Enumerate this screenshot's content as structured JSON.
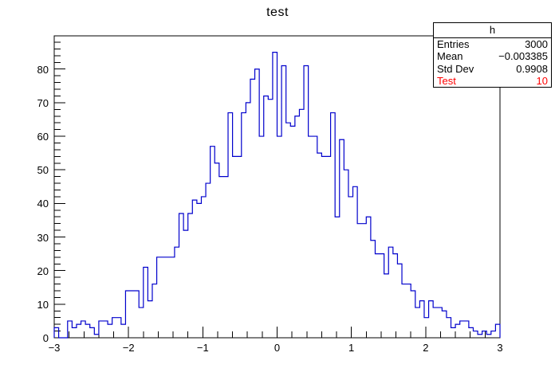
{
  "title": "test",
  "stats_box": {
    "header": "h",
    "rows": [
      {
        "label": "Entries",
        "value": "3000",
        "color": "#000000"
      },
      {
        "label": "Mean",
        "value": "−0.003385",
        "color": "#000000"
      },
      {
        "label": "Std Dev",
        "value": "0.9908",
        "color": "#000000"
      },
      {
        "label": "Test",
        "value": "10",
        "color": "#ff0000"
      }
    ]
  },
  "colors": {
    "hist_line": "#0000cc",
    "frame": "#000000",
    "background": "#ffffff",
    "stat_highlight": "#ff0000",
    "text": "#000000"
  },
  "chart_data": {
    "type": "bar",
    "subtype": "histogram-step-outline",
    "title": "test",
    "xlabel": "",
    "ylabel": "",
    "xlim": [
      -3,
      3
    ],
    "ylim": [
      0,
      89.9
    ],
    "bins": 100,
    "bin_start": -3,
    "bin_width": 0.06,
    "values": [
      3,
      0,
      0,
      5,
      3,
      4,
      5,
      4,
      3,
      1,
      5,
      5,
      4,
      6,
      6,
      4,
      14,
      14,
      14,
      9,
      21,
      11,
      16,
      24,
      24,
      24,
      24,
      27,
      37,
      32,
      37,
      41,
      40,
      42,
      46,
      57,
      52,
      48,
      48,
      67,
      54,
      54,
      67,
      70,
      77,
      80,
      60,
      72,
      71,
      85,
      60,
      81,
      64,
      63,
      66,
      68,
      81,
      60,
      60,
      55,
      54,
      54,
      67,
      36,
      59,
      50,
      42,
      45,
      34,
      34,
      36,
      29,
      25,
      25,
      19,
      27,
      25,
      22,
      16,
      16,
      14,
      9,
      11,
      6,
      11,
      9,
      9,
      8,
      6,
      3,
      4,
      5,
      5,
      3,
      2,
      1,
      2,
      1,
      2,
      4
    ],
    "x_major_ticks": [
      -3,
      -2,
      -1,
      0,
      1,
      2,
      3
    ],
    "x_tick_labels": [
      "−3",
      "−2",
      "−1",
      "0",
      "1",
      "2",
      "3"
    ],
    "x_minor_step": 0.2,
    "y_major_ticks": [
      0,
      10,
      20,
      30,
      40,
      50,
      60,
      70,
      80
    ],
    "y_tick_labels": [
      "0",
      "10",
      "20",
      "30",
      "40",
      "50",
      "60",
      "70",
      "80"
    ],
    "y_minor_step": 2,
    "grid": false,
    "legend": "none"
  }
}
